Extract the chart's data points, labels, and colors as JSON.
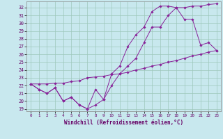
{
  "xlabel": "Windchill (Refroidissement éolien,°C)",
  "bg_color": "#c8e8ee",
  "grid_color": "#9dc8bb",
  "line_color": "#882299",
  "xlim": [
    -0.5,
    23.5
  ],
  "ylim": [
    18.7,
    32.8
  ],
  "xticks": [
    0,
    1,
    2,
    3,
    4,
    5,
    6,
    7,
    8,
    9,
    10,
    11,
    12,
    13,
    14,
    15,
    16,
    17,
    18,
    19,
    20,
    21,
    22,
    23
  ],
  "yticks": [
    19,
    20,
    21,
    22,
    23,
    24,
    25,
    26,
    27,
    28,
    29,
    30,
    31,
    32
  ],
  "line1_x": [
    0,
    1,
    2,
    3,
    4,
    5,
    6,
    7,
    8,
    9,
    10,
    11,
    12,
    13,
    14,
    15,
    16,
    17,
    18,
    19,
    20,
    21,
    22,
    23
  ],
  "line1_y": [
    22.2,
    21.5,
    21.0,
    21.7,
    20.0,
    20.5,
    19.5,
    19.0,
    19.5,
    20.2,
    22.0,
    23.5,
    24.5,
    25.5,
    27.5,
    29.5,
    29.5,
    31.0,
    32.0,
    32.0,
    32.2,
    32.2,
    32.4,
    32.5
  ],
  "line2_x": [
    0,
    1,
    2,
    3,
    4,
    5,
    6,
    7,
    8,
    9,
    10,
    11,
    12,
    13,
    14,
    15,
    16,
    17,
    18,
    19,
    20,
    21,
    22,
    23
  ],
  "line2_y": [
    22.2,
    21.5,
    21.0,
    21.7,
    20.0,
    20.5,
    19.5,
    19.0,
    21.5,
    20.2,
    23.5,
    24.5,
    27.0,
    28.5,
    29.5,
    31.5,
    32.2,
    32.2,
    32.0,
    30.5,
    30.5,
    27.2,
    27.5,
    26.5
  ],
  "line3_x": [
    0,
    1,
    2,
    3,
    4,
    5,
    6,
    7,
    8,
    9,
    10,
    11,
    12,
    13,
    14,
    15,
    16,
    17,
    18,
    19,
    20,
    21,
    22,
    23
  ],
  "line3_y": [
    22.2,
    22.2,
    22.2,
    22.3,
    22.3,
    22.5,
    22.6,
    23.0,
    23.1,
    23.2,
    23.4,
    23.5,
    23.7,
    24.0,
    24.2,
    24.5,
    24.7,
    25.0,
    25.2,
    25.5,
    25.8,
    26.0,
    26.3,
    26.5
  ]
}
